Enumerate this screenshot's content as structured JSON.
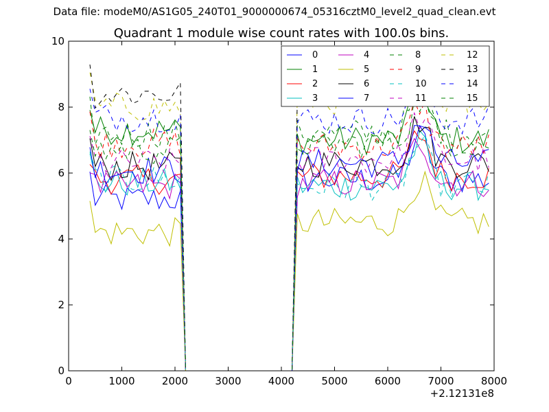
{
  "figure": {
    "supertitle": "Data file: modeM0/AS1G05_240T01_9000000674_05316cztM0_level2_quad_clean.evt"
  },
  "chart_data": {
    "type": "line",
    "title": "Quadrant 1 module wise count rates with 100.0s bins.",
    "xlabel": "",
    "ylabel": "",
    "x_offset_label": "+2.12131e8",
    "xlim": [
      0,
      8000
    ],
    "ylim": [
      0,
      10
    ],
    "x_ticks": [
      0,
      1000,
      2000,
      3000,
      4000,
      5000,
      6000,
      7000,
      8000
    ],
    "y_ticks": [
      0,
      2,
      4,
      6,
      8,
      10
    ],
    "x_tick_labels": [
      "0",
      "1000",
      "2000",
      "3000",
      "4000",
      "5000",
      "6000",
      "7000",
      "8000"
    ],
    "y_tick_labels": [
      "0",
      "2",
      "4",
      "6",
      "8",
      "10"
    ],
    "grid": false,
    "legend_position": "upper-right",
    "legend_columns": 4,
    "x": {
      "segment1_start": 400,
      "segment1_end": 2100,
      "gap_start": 2100,
      "gap_end": 4300,
      "segment2_start": 4300,
      "segment2_end": 7900,
      "step": 100,
      "drop_end": 2200,
      "rise_start": 4200
    },
    "series": [
      {
        "name": "0",
        "color": "#0000ff",
        "dash": "solid",
        "level1": 5.2,
        "level2": 5.8
      },
      {
        "name": "1",
        "color": "#008000",
        "dash": "solid",
        "level1": 7.3,
        "level2": 7.0
      },
      {
        "name": "2",
        "color": "#ff0000",
        "dash": "solid",
        "level1": 5.8,
        "level2": 5.9
      },
      {
        "name": "3",
        "color": "#00bfbf",
        "dash": "solid",
        "level1": 5.7,
        "level2": 5.6
      },
      {
        "name": "4",
        "color": "#bf00bf",
        "dash": "solid",
        "level1": 5.6,
        "level2": 5.7
      },
      {
        "name": "5",
        "color": "#bfbf00",
        "dash": "solid",
        "level1": 4.2,
        "level2": 4.5
      },
      {
        "name": "6",
        "color": "#000000",
        "dash": "solid",
        "level1": 6.2,
        "level2": 6.3
      },
      {
        "name": "7",
        "color": "#0000ff",
        "dash": "solid",
        "level1": 6.1,
        "level2": 6.3
      },
      {
        "name": "8",
        "color": "#008000",
        "dash": "dashed",
        "level1": 7.2,
        "level2": 7.2
      },
      {
        "name": "9",
        "color": "#ff0000",
        "dash": "dashed",
        "level1": 6.9,
        "level2": 6.8
      },
      {
        "name": "10",
        "color": "#00bfbf",
        "dash": "dashed",
        "level1": 5.8,
        "level2": 5.6
      },
      {
        "name": "11",
        "color": "#bf00bf",
        "dash": "dashed",
        "level1": 6.3,
        "level2": 6.4
      },
      {
        "name": "12",
        "color": "#bfbf00",
        "dash": "dashed",
        "level1": 8.0,
        "level2": 8.2
      },
      {
        "name": "13",
        "color": "#000000",
        "dash": "dashed",
        "level1": 8.4,
        "level2": 8.6
      },
      {
        "name": "14",
        "color": "#0000ff",
        "dash": "dashed",
        "level1": 7.7,
        "level2": 7.6
      },
      {
        "name": "15",
        "color": "#008000",
        "dash": "dashed",
        "level1": 6.7,
        "level2": 6.9
      }
    ]
  }
}
